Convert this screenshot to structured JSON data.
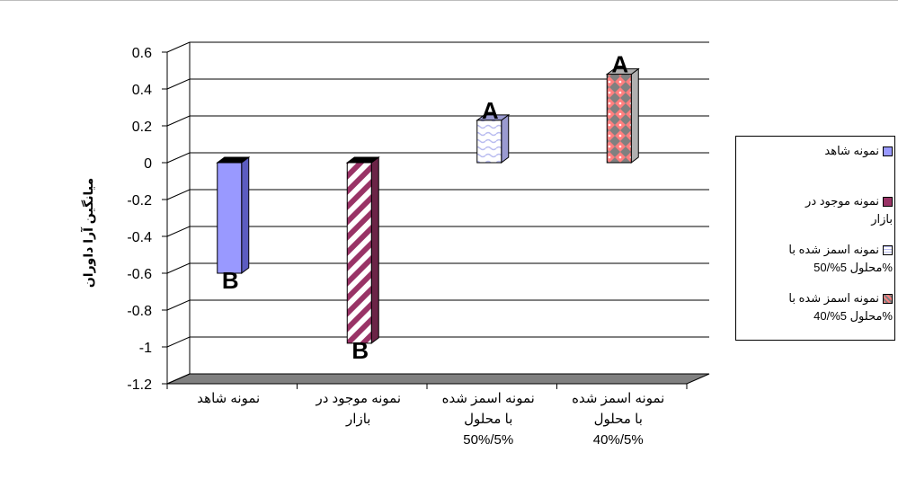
{
  "chart_data": {
    "type": "bar",
    "title": "",
    "xlabel": "",
    "ylabel": "میانگین آرا داوران",
    "ylim": [
      -1.2,
      0.6
    ],
    "ytick_step": 0.2,
    "yticks": [
      "0.6",
      "0.4",
      "0.2",
      "0",
      "-0.2",
      "-0.4",
      "-0.6",
      "-0.8",
      "-1",
      "-1.2"
    ],
    "grid": true,
    "legend_position": "right",
    "categories": [
      [
        "نمونه شاهد"
      ],
      [
        "نمونه  موجود در",
        "بازار"
      ],
      [
        "نمونه اسمز شده",
        "با محلول",
        "5%/50%"
      ],
      [
        "نمونه اسمز شده",
        "با محلول",
        "5%/40%"
      ]
    ],
    "series": [
      {
        "name": "نمونه شاهد",
        "legend_lines": [
          "نمونه شاهد"
        ],
        "value": -0.6,
        "letter": "B",
        "color": "#9999ff"
      },
      {
        "name": "نمونه  موجود در بازار",
        "legend_lines": [
          "نمونه  موجود در",
          "بازار"
        ],
        "value": -0.98,
        "letter": "B",
        "color": "#993366"
      },
      {
        "name": "نمونه اسمز شده با محلول 5%/50%",
        "legend_lines": [
          "نمونه اسمز شده با",
          "%محلول 5%/50"
        ],
        "value": 0.23,
        "letter": "A",
        "color": "#ccccff"
      },
      {
        "name": "نمونه اسمز شده با محلول 5%/40%",
        "legend_lines": [
          "نمونه اسمز شده با",
          "%محلول 5%/40"
        ],
        "value": 0.48,
        "letter": "A",
        "color": "#ff8080"
      }
    ]
  }
}
